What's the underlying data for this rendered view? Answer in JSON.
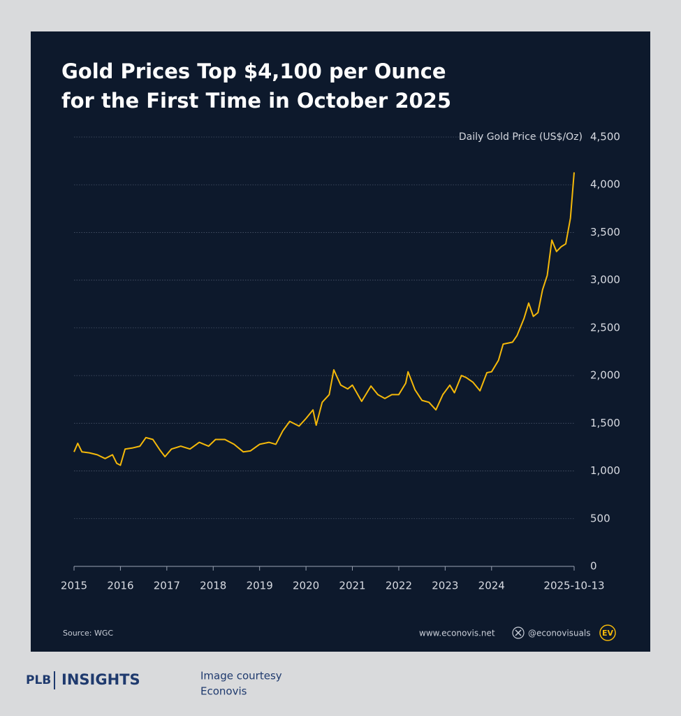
{
  "chart_data": {
    "type": "line",
    "title": [
      "Gold Prices Top $4,100 per Ounce",
      "for the First Time in October 2025"
    ],
    "y_label": "Daily Gold Price (US$/Oz)",
    "source": "Source: WGC",
    "website": "www.econovis.net",
    "social": "@econovisuals",
    "logo": "EV",
    "color": "#f5b90a",
    "grid": true,
    "x": [
      2015.0,
      2015.08,
      2015.17,
      2015.33,
      2015.5,
      2015.67,
      2015.83,
      2015.92,
      2016.0,
      2016.1,
      2016.25,
      2016.42,
      2016.55,
      2016.7,
      2016.85,
      2016.96,
      2017.1,
      2017.3,
      2017.5,
      2017.7,
      2017.9,
      2018.05,
      2018.25,
      2018.45,
      2018.65,
      2018.8,
      2019.0,
      2019.2,
      2019.35,
      2019.5,
      2019.65,
      2019.85,
      2020.0,
      2020.15,
      2020.22,
      2020.35,
      2020.5,
      2020.6,
      2020.75,
      2020.9,
      2021.0,
      2021.2,
      2021.4,
      2021.55,
      2021.7,
      2021.85,
      2022.0,
      2022.15,
      2022.2,
      2022.35,
      2022.5,
      2022.65,
      2022.8,
      2022.95,
      2023.1,
      2023.2,
      2023.35,
      2023.45,
      2023.6,
      2023.75,
      2023.9,
      2024.0,
      2024.15,
      2024.25,
      2024.45,
      2024.55,
      2024.7,
      2024.8,
      2024.9,
      2025.0,
      2025.1,
      2025.2,
      2025.3,
      2025.4,
      2025.5,
      2025.6,
      2025.7,
      2025.78
    ],
    "values": [
      1200,
      1290,
      1200,
      1190,
      1170,
      1130,
      1170,
      1080,
      1060,
      1230,
      1240,
      1260,
      1350,
      1330,
      1220,
      1150,
      1230,
      1260,
      1230,
      1300,
      1260,
      1330,
      1330,
      1280,
      1200,
      1210,
      1280,
      1300,
      1280,
      1420,
      1520,
      1470,
      1550,
      1640,
      1480,
      1720,
      1800,
      2060,
      1900,
      1860,
      1900,
      1730,
      1890,
      1800,
      1760,
      1800,
      1800,
      1920,
      2040,
      1850,
      1740,
      1720,
      1640,
      1800,
      1900,
      1820,
      2000,
      1980,
      1930,
      1840,
      2030,
      2040,
      2160,
      2330,
      2350,
      2420,
      2600,
      2760,
      2620,
      2660,
      2900,
      3050,
      3420,
      3300,
      3350,
      3380,
      3650,
      4130
    ],
    "xlim": [
      2015,
      2025.78
    ],
    "xticks": [
      2015,
      2016,
      2017,
      2018,
      2019,
      2020,
      2021,
      2022,
      2023,
      2024,
      {
        "value": 2025.78,
        "label": "2025-10-13"
      }
    ],
    "ylim": [
      0,
      4500
    ],
    "yticks": [
      0,
      500,
      {
        "value": 1000,
        "label": "1,000"
      },
      {
        "value": 1500,
        "label": "1,500"
      },
      {
        "value": 2000,
        "label": "2,000"
      },
      {
        "value": 2500,
        "label": "2,500"
      },
      {
        "value": 3000,
        "label": "3,000"
      },
      {
        "value": 3500,
        "label": "3,500"
      },
      {
        "value": 4000,
        "label": "4,000"
      },
      {
        "value": 4500,
        "label": "4,500"
      }
    ]
  },
  "branding": {
    "plb": "PLB",
    "insights": "INSIGHTS",
    "credit": [
      "Image courtesy",
      "Econovis"
    ]
  }
}
